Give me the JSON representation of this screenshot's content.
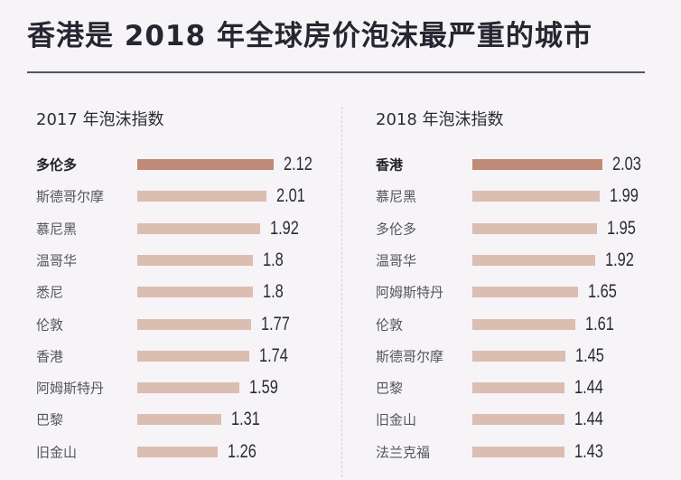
{
  "title": "香港是 2018 年全球房价泡沫最严重的城市",
  "colors": {
    "highlight_bar": "#bf8a78",
    "bar": "#dcbdb2",
    "background": "#f6f4f7"
  },
  "chart_data": [
    {
      "type": "bar",
      "orientation": "horizontal",
      "title": "2017 年泡沫指数",
      "categories": [
        "多伦多",
        "斯德哥尔摩",
        "慕尼黑",
        "温哥华",
        "悉尼",
        "伦敦",
        "香港",
        "阿姆斯特丹",
        "巴黎",
        "旧金山"
      ],
      "values": [
        2.12,
        2.01,
        1.92,
        1.8,
        1.8,
        1.77,
        1.74,
        1.59,
        1.31,
        1.26
      ],
      "value_labels": [
        "2.12",
        "2.01",
        "1.92",
        "1.8",
        "1.8",
        "1.77",
        "1.74",
        "1.59",
        "1.31",
        "1.26"
      ],
      "highlighted": "多伦多"
    },
    {
      "type": "bar",
      "orientation": "horizontal",
      "title": "2018 年泡沫指数",
      "categories": [
        "香港",
        "慕尼黑",
        "多伦多",
        "温哥华",
        "阿姆斯特丹",
        "伦敦",
        "斯德哥尔摩",
        "巴黎",
        "旧金山",
        "法兰克福"
      ],
      "values": [
        2.03,
        1.99,
        1.95,
        1.92,
        1.65,
        1.61,
        1.45,
        1.44,
        1.44,
        1.43
      ],
      "value_labels": [
        "2.03",
        "1.99",
        "1.95",
        "1.92",
        "1.65",
        "1.61",
        "1.45",
        "1.44",
        "1.44",
        "1.43"
      ],
      "highlighted": "香港"
    }
  ]
}
